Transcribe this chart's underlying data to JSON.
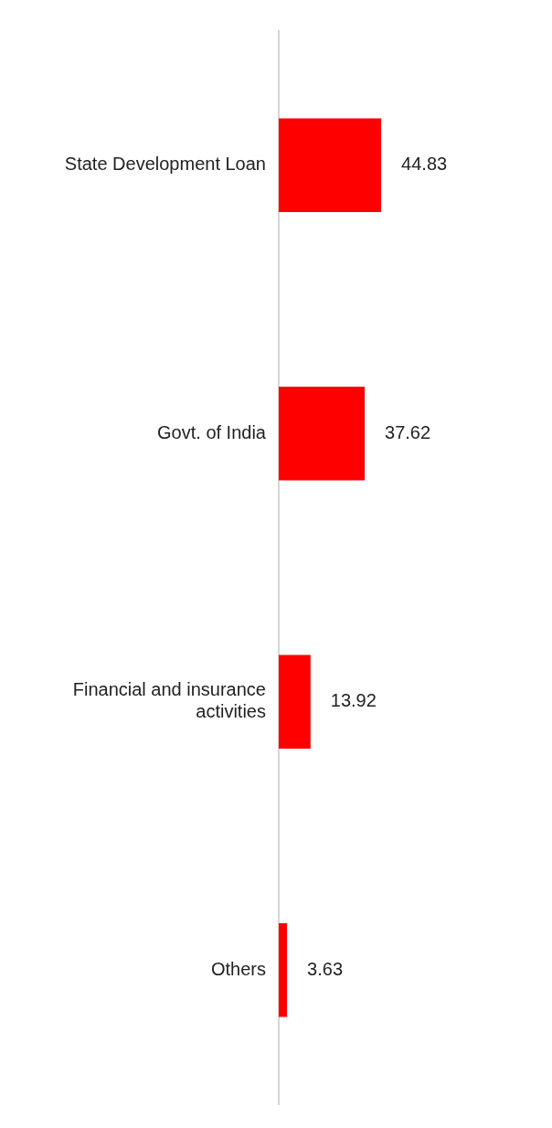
{
  "chart_data": {
    "type": "bar",
    "orientation": "horizontal",
    "categories": [
      "State Development Loan",
      "Govt. of India",
      "Financial and insurance activities",
      "Others"
    ],
    "values": [
      44.83,
      37.62,
      13.92,
      3.63
    ],
    "color": "#ff0000",
    "data_labels": true,
    "grid": false,
    "legend": false,
    "tick_labels": "y"
  }
}
